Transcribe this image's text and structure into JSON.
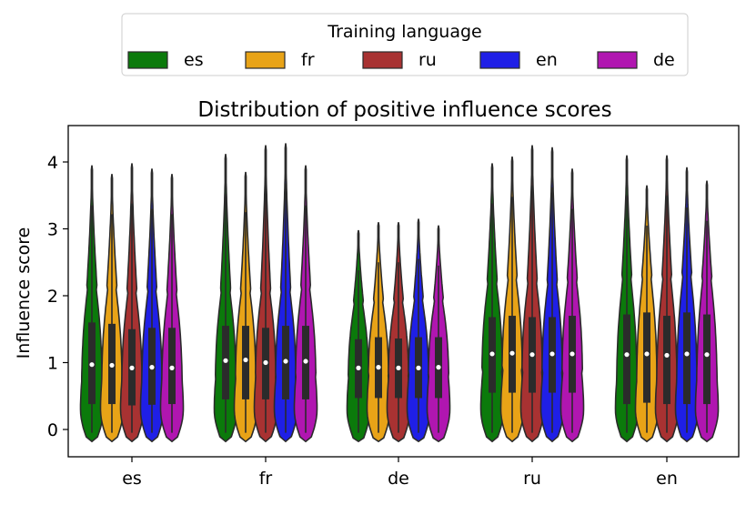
{
  "chart_data": {
    "type": "violin",
    "title": "Distribution of positive influence scores",
    "xlabel": "",
    "ylabel": "Influence score",
    "ylim": [
      -0.2,
      4.45
    ],
    "yticks": [
      0,
      1,
      2,
      3,
      4
    ],
    "categories": [
      "es",
      "fr",
      "de",
      "ru",
      "en"
    ],
    "legend": {
      "title": "Training language",
      "position": "top-center, outside plot",
      "entries": [
        "es",
        "fr",
        "ru",
        "en",
        "de"
      ]
    },
    "colors": {
      "es": "#0b7a0b",
      "fr": "#e8a317",
      "ru": "#a83232",
      "en": "#1f1fe6",
      "de": "#b016b0"
    },
    "series": [
      {
        "name": "es",
        "medians": [
          0.97,
          1.03,
          0.92,
          1.13,
          1.12
        ],
        "q1": [
          0.38,
          0.45,
          0.47,
          0.55,
          0.38
        ],
        "q3": [
          1.6,
          1.55,
          1.35,
          1.68,
          1.72
        ],
        "max": [
          3.95,
          4.12,
          2.98,
          3.98,
          4.1
        ]
      },
      {
        "name": "fr",
        "medians": [
          0.96,
          1.04,
          0.93,
          1.14,
          1.13
        ],
        "q1": [
          0.38,
          0.45,
          0.47,
          0.55,
          0.4
        ],
        "q3": [
          1.58,
          1.55,
          1.38,
          1.7,
          1.75
        ],
        "max": [
          3.82,
          3.85,
          3.1,
          4.08,
          3.65
        ]
      },
      {
        "name": "ru",
        "medians": [
          0.92,
          1.0,
          0.92,
          1.12,
          1.11
        ],
        "q1": [
          0.36,
          0.45,
          0.47,
          0.55,
          0.38
        ],
        "q3": [
          1.5,
          1.52,
          1.36,
          1.68,
          1.7
        ],
        "max": [
          3.98,
          4.25,
          3.1,
          4.25,
          4.1
        ]
      },
      {
        "name": "en",
        "medians": [
          0.93,
          1.02,
          0.92,
          1.13,
          1.13
        ],
        "q1": [
          0.37,
          0.45,
          0.47,
          0.55,
          0.38
        ],
        "q3": [
          1.52,
          1.55,
          1.38,
          1.68,
          1.75
        ],
        "max": [
          3.9,
          4.28,
          3.15,
          4.22,
          3.92
        ]
      },
      {
        "name": "de",
        "medians": [
          0.92,
          1.02,
          0.93,
          1.13,
          1.12
        ],
        "q1": [
          0.38,
          0.45,
          0.47,
          0.55,
          0.38
        ],
        "q3": [
          1.52,
          1.55,
          1.38,
          1.7,
          1.72
        ],
        "max": [
          3.82,
          3.95,
          3.05,
          3.9,
          3.72
        ]
      }
    ]
  }
}
